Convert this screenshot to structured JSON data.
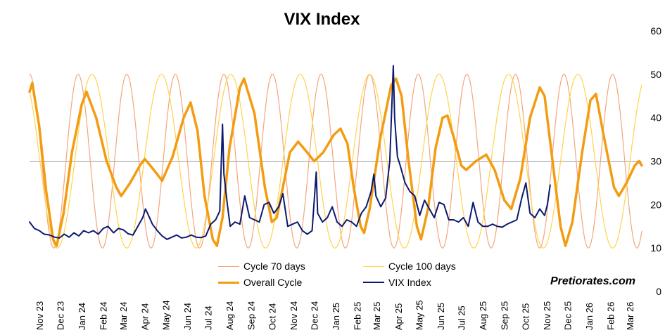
{
  "chart_data": {
    "type": "line",
    "title": "VIX Index",
    "watermark": "Pretiorates.com",
    "xlabel": "",
    "ylabel": "",
    "ylim": [
      0,
      60
    ],
    "yticks": [
      0,
      10,
      20,
      30,
      40,
      50,
      60
    ],
    "reference_line": 30,
    "x_start": "2023-11-01",
    "x_end": "2026-04-01",
    "x_tick_labels": [
      "Nov 23",
      "Dec 23",
      "Jan 24",
      "Feb 24",
      "Mar 24",
      "Apr 24",
      "May 24",
      "Jun 24",
      "Jul 24",
      "Aug 24",
      "Sep 24",
      "Oct 24",
      "Nov 24",
      "Dec 24",
      "Jan 25",
      "Feb 25",
      "Mar 25",
      "Apr 25",
      "May 25",
      "Jun 25",
      "Jul 25",
      "Aug 25",
      "Sep 25",
      "Oct 25",
      "Nov 25",
      "Dec 25",
      "Jan 26",
      "Feb 26",
      "Mar 26"
    ],
    "legend_position": "bottom",
    "series": [
      {
        "name": "Cycle 70 days",
        "color": "#F4A57E",
        "kind": "sine",
        "period_days": 70,
        "center": 30,
        "amplitude": 20,
        "peaks": [
          "2023-11-01",
          "2024-01-10",
          "2024-03-20",
          "2024-05-29",
          "2024-08-07",
          "2024-10-16",
          "2024-12-25",
          "2025-03-05",
          "2025-05-14",
          "2025-07-23",
          "2025-10-01",
          "2025-12-10",
          "2026-02-18"
        ]
      },
      {
        "name": "Cycle 100 days",
        "color": "#FFD34D",
        "kind": "sine",
        "period_days": 100,
        "center": 30,
        "amplitude": 20,
        "peaks": [
          "2024-01-30",
          "2024-05-09",
          "2024-08-17",
          "2024-11-25",
          "2025-03-05",
          "2025-06-13",
          "2025-09-21",
          "2025-12-30"
        ]
      },
      {
        "name": "Overall Cycle",
        "color": "#F39C12",
        "kind": "line",
        "points": [
          [
            "2023-11-01",
            46
          ],
          [
            "2023-11-05",
            48
          ],
          [
            "2023-11-15",
            38
          ],
          [
            "2023-11-25",
            23
          ],
          [
            "2023-12-05",
            12
          ],
          [
            "2023-12-10",
            10.5
          ],
          [
            "2023-12-20",
            18
          ],
          [
            "2024-01-01",
            32
          ],
          [
            "2024-01-15",
            43
          ],
          [
            "2024-01-22",
            46
          ],
          [
            "2024-02-05",
            40
          ],
          [
            "2024-02-20",
            30
          ],
          [
            "2024-03-05",
            24
          ],
          [
            "2024-03-12",
            22
          ],
          [
            "2024-03-25",
            25
          ],
          [
            "2024-04-08",
            29
          ],
          [
            "2024-04-15",
            30.5
          ],
          [
            "2024-04-28",
            28
          ],
          [
            "2024-05-10",
            25.5
          ],
          [
            "2024-05-25",
            31
          ],
          [
            "2024-06-10",
            40
          ],
          [
            "2024-06-20",
            43.5
          ],
          [
            "2024-06-30",
            37
          ],
          [
            "2024-07-10",
            22
          ],
          [
            "2024-07-22",
            12
          ],
          [
            "2024-07-28",
            10.5
          ],
          [
            "2024-08-05",
            17
          ],
          [
            "2024-08-15",
            33
          ],
          [
            "2024-08-30",
            47
          ],
          [
            "2024-09-05",
            49
          ],
          [
            "2024-09-20",
            41
          ],
          [
            "2024-10-05",
            24
          ],
          [
            "2024-10-15",
            16
          ],
          [
            "2024-10-22",
            17
          ],
          [
            "2024-10-31",
            24
          ],
          [
            "2024-11-10",
            32
          ],
          [
            "2024-11-22",
            34.5
          ],
          [
            "2024-12-05",
            32
          ],
          [
            "2024-12-15",
            30
          ],
          [
            "2024-12-28",
            32
          ],
          [
            "2025-01-12",
            36
          ],
          [
            "2025-01-22",
            37.5
          ],
          [
            "2025-02-01",
            34
          ],
          [
            "2025-02-10",
            24
          ],
          [
            "2025-02-20",
            15
          ],
          [
            "2025-02-25",
            13.5
          ],
          [
            "2025-03-05",
            19
          ],
          [
            "2025-03-20",
            35
          ],
          [
            "2025-04-05",
            47.5
          ],
          [
            "2025-04-12",
            49
          ],
          [
            "2025-04-20",
            45
          ],
          [
            "2025-04-30",
            30
          ],
          [
            "2025-05-12",
            15
          ],
          [
            "2025-05-18",
            12
          ],
          [
            "2025-05-28",
            19
          ],
          [
            "2025-06-08",
            33
          ],
          [
            "2025-06-18",
            40
          ],
          [
            "2025-06-25",
            40.5
          ],
          [
            "2025-07-05",
            35
          ],
          [
            "2025-07-15",
            29
          ],
          [
            "2025-07-22",
            28
          ],
          [
            "2025-08-05",
            30
          ],
          [
            "2025-08-20",
            31.5
          ],
          [
            "2025-09-01",
            28
          ],
          [
            "2025-09-15",
            21
          ],
          [
            "2025-09-25",
            19
          ],
          [
            "2025-10-08",
            26
          ],
          [
            "2025-10-22",
            40
          ],
          [
            "2025-11-05",
            47
          ],
          [
            "2025-11-12",
            45
          ],
          [
            "2025-11-25",
            28
          ],
          [
            "2025-12-05",
            15
          ],
          [
            "2025-12-12",
            10.5
          ],
          [
            "2025-12-22",
            16
          ],
          [
            "2026-01-05",
            32
          ],
          [
            "2026-01-17",
            44
          ],
          [
            "2026-01-25",
            45.5
          ],
          [
            "2026-02-05",
            36
          ],
          [
            "2026-02-20",
            24
          ],
          [
            "2026-02-27",
            22
          ],
          [
            "2026-03-10",
            25
          ],
          [
            "2026-03-22",
            29
          ],
          [
            "2026-03-28",
            30
          ],
          [
            "2026-04-01",
            29
          ]
        ]
      },
      {
        "name": "VIX Index",
        "color": "#0B1A6E",
        "kind": "line",
        "points": [
          [
            "2023-11-01",
            16
          ],
          [
            "2023-11-08",
            14.5
          ],
          [
            "2023-11-15",
            14
          ],
          [
            "2023-11-22",
            13.2
          ],
          [
            "2023-11-30",
            13
          ],
          [
            "2023-12-07",
            12.5
          ],
          [
            "2023-12-14",
            12.3
          ],
          [
            "2023-12-21",
            13.2
          ],
          [
            "2023-12-28",
            12.5
          ],
          [
            "2024-01-04",
            13.5
          ],
          [
            "2024-01-11",
            12.8
          ],
          [
            "2024-01-18",
            14
          ],
          [
            "2024-01-25",
            13.5
          ],
          [
            "2024-02-01",
            14
          ],
          [
            "2024-02-08",
            13.2
          ],
          [
            "2024-02-15",
            14.5
          ],
          [
            "2024-02-22",
            15
          ],
          [
            "2024-03-01",
            13.5
          ],
          [
            "2024-03-08",
            14.5
          ],
          [
            "2024-03-15",
            14.2
          ],
          [
            "2024-03-22",
            13.3
          ],
          [
            "2024-03-29",
            13
          ],
          [
            "2024-04-05",
            15
          ],
          [
            "2024-04-12",
            17
          ],
          [
            "2024-04-16",
            19
          ],
          [
            "2024-04-19",
            18
          ],
          [
            "2024-04-26",
            15.5
          ],
          [
            "2024-05-03",
            14
          ],
          [
            "2024-05-10",
            12.8
          ],
          [
            "2024-05-17",
            12
          ],
          [
            "2024-05-24",
            12.5
          ],
          [
            "2024-05-31",
            13
          ],
          [
            "2024-06-07",
            12.3
          ],
          [
            "2024-06-14",
            12.5
          ],
          [
            "2024-06-21",
            13
          ],
          [
            "2024-06-28",
            12.5
          ],
          [
            "2024-07-05",
            12.4
          ],
          [
            "2024-07-12",
            12.8
          ],
          [
            "2024-07-19",
            15.5
          ],
          [
            "2024-07-26",
            16.5
          ],
          [
            "2024-08-01",
            18.5
          ],
          [
            "2024-08-05",
            38.5
          ],
          [
            "2024-08-07",
            27
          ],
          [
            "2024-08-12",
            20
          ],
          [
            "2024-08-16",
            15
          ],
          [
            "2024-08-23",
            16
          ],
          [
            "2024-08-30",
            15.5
          ],
          [
            "2024-09-06",
            22
          ],
          [
            "2024-09-13",
            17
          ],
          [
            "2024-09-20",
            16.5
          ],
          [
            "2024-09-27",
            16
          ],
          [
            "2024-10-04",
            20
          ],
          [
            "2024-10-11",
            20.5
          ],
          [
            "2024-10-18",
            18
          ],
          [
            "2024-10-25",
            19.5
          ],
          [
            "2024-10-31",
            22.5
          ],
          [
            "2024-11-07",
            15
          ],
          [
            "2024-11-14",
            15.5
          ],
          [
            "2024-11-21",
            16
          ],
          [
            "2024-11-28",
            14
          ],
          [
            "2024-12-05",
            13.2
          ],
          [
            "2024-12-12",
            14
          ],
          [
            "2024-12-18",
            27.5
          ],
          [
            "2024-12-20",
            18
          ],
          [
            "2024-12-27",
            16
          ],
          [
            "2025-01-03",
            17
          ],
          [
            "2025-01-10",
            19.5
          ],
          [
            "2025-01-17",
            16
          ],
          [
            "2025-01-24",
            15
          ],
          [
            "2025-01-31",
            16.5
          ],
          [
            "2025-02-07",
            16
          ],
          [
            "2025-02-14",
            15
          ],
          [
            "2025-02-21",
            18
          ],
          [
            "2025-02-28",
            19.5
          ],
          [
            "2025-03-07",
            23
          ],
          [
            "2025-03-11",
            27
          ],
          [
            "2025-03-14",
            22
          ],
          [
            "2025-03-21",
            19.5
          ],
          [
            "2025-03-28",
            21.5
          ],
          [
            "2025-04-03",
            30
          ],
          [
            "2025-04-08",
            52
          ],
          [
            "2025-04-10",
            40
          ],
          [
            "2025-04-14",
            31
          ],
          [
            "2025-04-18",
            29
          ],
          [
            "2025-04-25",
            25
          ],
          [
            "2025-05-02",
            23
          ],
          [
            "2025-05-09",
            22
          ],
          [
            "2025-05-16",
            17.5
          ],
          [
            "2025-05-23",
            21
          ],
          [
            "2025-05-30",
            19
          ],
          [
            "2025-06-06",
            17
          ],
          [
            "2025-06-13",
            20.5
          ],
          [
            "2025-06-20",
            20
          ],
          [
            "2025-06-27",
            16.5
          ],
          [
            "2025-07-04",
            16.5
          ],
          [
            "2025-07-11",
            16
          ],
          [
            "2025-07-18",
            17
          ],
          [
            "2025-07-25",
            15
          ],
          [
            "2025-08-01",
            20.5
          ],
          [
            "2025-08-08",
            16
          ],
          [
            "2025-08-15",
            15
          ],
          [
            "2025-08-22",
            15
          ],
          [
            "2025-08-29",
            15.5
          ],
          [
            "2025-09-05",
            15
          ],
          [
            "2025-09-12",
            14.8
          ],
          [
            "2025-09-19",
            15.5
          ],
          [
            "2025-09-26",
            16
          ],
          [
            "2025-10-03",
            16.5
          ],
          [
            "2025-10-10",
            21.5
          ],
          [
            "2025-10-16",
            25
          ],
          [
            "2025-10-22",
            18
          ],
          [
            "2025-10-29",
            17
          ],
          [
            "2025-11-05",
            19
          ],
          [
            "2025-11-12",
            17.5
          ],
          [
            "2025-11-16",
            20
          ],
          [
            "2025-11-20",
            24.5
          ]
        ]
      }
    ]
  }
}
